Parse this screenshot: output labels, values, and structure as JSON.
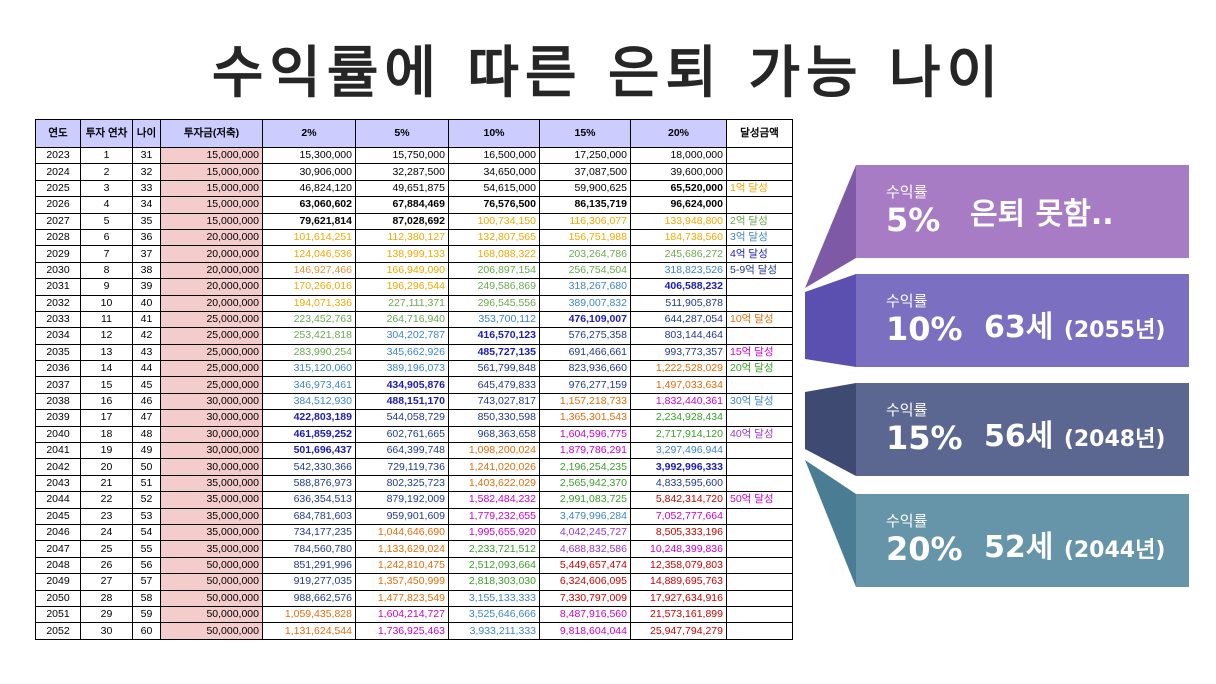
{
  "title": "수익률에 따른 은퇴 가능 나이",
  "table": {
    "headers": [
      "연도",
      "투자 연차",
      "나이",
      "투자금(저축)",
      "2%",
      "5%",
      "10%",
      "15%",
      "20%",
      "달성금액"
    ],
    "rows": [
      {
        "year": "2023",
        "n": "1",
        "age": "31",
        "inv": "15,000,000",
        "v2": "15,300,000",
        "v5": "15,750,000",
        "v10": "16,500,000",
        "v15": "17,250,000",
        "v20": "18,000,000",
        "ach": ""
      },
      {
        "year": "2024",
        "n": "2",
        "age": "32",
        "inv": "15,000,000",
        "v2": "30,906,000",
        "v5": "32,287,500",
        "v10": "34,650,000",
        "v15": "37,087,500",
        "v20": "39,600,000",
        "ach": ""
      },
      {
        "year": "2025",
        "n": "3",
        "age": "33",
        "inv": "15,000,000",
        "v2": "46,824,120",
        "v5": "49,651,875",
        "v10": "54,615,000",
        "v15": "59,900,625",
        "v20": "65,520,000",
        "ach": "1억 달성"
      },
      {
        "year": "2026",
        "n": "4",
        "age": "34",
        "inv": "15,000,000",
        "v2": "63,060,602",
        "v5": "67,884,469",
        "v10": "76,576,500",
        "v15": "86,135,719",
        "v20": "96,624,000",
        "ach": ""
      },
      {
        "year": "2027",
        "n": "5",
        "age": "35",
        "inv": "15,000,000",
        "v2": "79,621,814",
        "v5": "87,028,692",
        "v10": "100,734,150",
        "v15": "116,306,077",
        "v20": "133,948,800",
        "ach": "2억 달성"
      },
      {
        "year": "2028",
        "n": "6",
        "age": "36",
        "inv": "20,000,000",
        "v2": "101,614,251",
        "v5": "112,380,127",
        "v10": "132,807,565",
        "v15": "156,751,988",
        "v20": "184,738,560",
        "ach": "3억 달성"
      },
      {
        "year": "2029",
        "n": "7",
        "age": "37",
        "inv": "20,000,000",
        "v2": "124,046,536",
        "v5": "138,999,133",
        "v10": "168,088,322",
        "v15": "203,264,786",
        "v20": "245,686,272",
        "ach": "4억 달성"
      },
      {
        "year": "2030",
        "n": "8",
        "age": "38",
        "inv": "20,000,000",
        "v2": "146,927,466",
        "v5": "166,949,090",
        "v10": "206,897,154",
        "v15": "256,754,504",
        "v20": "318,823,526",
        "ach": "5-9억 달성"
      },
      {
        "year": "2031",
        "n": "9",
        "age": "39",
        "inv": "20,000,000",
        "v2": "170,266,016",
        "v5": "196,296,544",
        "v10": "249,586,869",
        "v15": "318,267,680",
        "v20": "406,588,232",
        "ach": ""
      },
      {
        "year": "2032",
        "n": "10",
        "age": "40",
        "inv": "20,000,000",
        "v2": "194,071,336",
        "v5": "227,111,371",
        "v10": "296,545,556",
        "v15": "389,007,832",
        "v20": "511,905,878",
        "ach": ""
      },
      {
        "year": "2033",
        "n": "11",
        "age": "41",
        "inv": "25,000,000",
        "v2": "223,452,763",
        "v5": "264,716,940",
        "v10": "353,700,112",
        "v15": "476,109,007",
        "v20": "644,287,054",
        "ach": "10억 달성"
      },
      {
        "year": "2034",
        "n": "12",
        "age": "42",
        "inv": "25,000,000",
        "v2": "253,421,818",
        "v5": "304,202,787",
        "v10": "416,570,123",
        "v15": "576,275,358",
        "v20": "803,144,464",
        "ach": ""
      },
      {
        "year": "2035",
        "n": "13",
        "age": "43",
        "inv": "25,000,000",
        "v2": "283,990,254",
        "v5": "345,662,926",
        "v10": "485,727,135",
        "v15": "691,466,661",
        "v20": "993,773,357",
        "ach": "15억 달성"
      },
      {
        "year": "2036",
        "n": "14",
        "age": "44",
        "inv": "25,000,000",
        "v2": "315,120,060",
        "v5": "389,196,073",
        "v10": "561,799,848",
        "v15": "823,936,660",
        "v20": "1,222,528,029",
        "ach": "20억 달성"
      },
      {
        "year": "2037",
        "n": "15",
        "age": "45",
        "inv": "25,000,000",
        "v2": "346,973,461",
        "v5": "434,905,876",
        "v10": "645,479,833",
        "v15": "976,277,159",
        "v20": "1,497,033,634",
        "ach": ""
      },
      {
        "year": "2038",
        "n": "16",
        "age": "46",
        "inv": "30,000,000",
        "v2": "384,512,930",
        "v5": "488,151,170",
        "v10": "743,027,817",
        "v15": "1,157,218,733",
        "v20": "1,832,440,361",
        "ach": "30억 달성"
      },
      {
        "year": "2039",
        "n": "17",
        "age": "47",
        "inv": "30,000,000",
        "v2": "422,803,189",
        "v5": "544,058,729",
        "v10": "850,330,598",
        "v15": "1,365,301,543",
        "v20": "2,234,928,434",
        "ach": ""
      },
      {
        "year": "2040",
        "n": "18",
        "age": "48",
        "inv": "30,000,000",
        "v2": "461,859,252",
        "v5": "602,761,665",
        "v10": "968,363,658",
        "v15": "1,604,596,775",
        "v20": "2,717,914,120",
        "ach": "40억 달성"
      },
      {
        "year": "2041",
        "n": "19",
        "age": "49",
        "inv": "30,000,000",
        "v2": "501,696,437",
        "v5": "664,399,748",
        "v10": "1,098,200,024",
        "v15": "1,879,786,291",
        "v20": "3,297,496,944",
        "ach": ""
      },
      {
        "year": "2042",
        "n": "20",
        "age": "50",
        "inv": "30,000,000",
        "v2": "542,330,366",
        "v5": "729,119,736",
        "v10": "1,241,020,026",
        "v15": "2,196,254,235",
        "v20": "3,992,996,333",
        "ach": ""
      },
      {
        "year": "2043",
        "n": "21",
        "age": "51",
        "inv": "35,000,000",
        "v2": "588,876,973",
        "v5": "802,325,723",
        "v10": "1,403,622,029",
        "v15": "2,565,942,370",
        "v20": "4,833,595,600",
        "ach": ""
      },
      {
        "year": "2044",
        "n": "22",
        "age": "52",
        "inv": "35,000,000",
        "v2": "636,354,513",
        "v5": "879,192,009",
        "v10": "1,582,484,232",
        "v15": "2,991,083,725",
        "v20": "5,842,314,720",
        "ach": "50억 달성"
      },
      {
        "year": "2045",
        "n": "23",
        "age": "53",
        "inv": "35,000,000",
        "v2": "684,781,603",
        "v5": "959,901,609",
        "v10": "1,779,232,655",
        "v15": "3,479,996,284",
        "v20": "7,052,777,664",
        "ach": ""
      },
      {
        "year": "2046",
        "n": "24",
        "age": "54",
        "inv": "35,000,000",
        "v2": "734,177,235",
        "v5": "1,044,646,690",
        "v10": "1,995,655,920",
        "v15": "4,042,245,727",
        "v20": "8,505,333,196",
        "ach": ""
      },
      {
        "year": "2047",
        "n": "25",
        "age": "55",
        "inv": "35,000,000",
        "v2": "784,560,780",
        "v5": "1,133,629,024",
        "v10": "2,233,721,512",
        "v15": "4,688,832,586",
        "v20": "10,248,399,836",
        "ach": ""
      },
      {
        "year": "2048",
        "n": "26",
        "age": "56",
        "inv": "50,000,000",
        "v2": "851,291,996",
        "v5": "1,242,810,475",
        "v10": "2,512,093,664",
        "v15": "5,449,657,474",
        "v20": "12,358,079,803",
        "ach": ""
      },
      {
        "year": "2049",
        "n": "27",
        "age": "57",
        "inv": "50,000,000",
        "v2": "919,277,035",
        "v5": "1,357,450,999",
        "v10": "2,818,303,030",
        "v15": "6,324,606,095",
        "v20": "14,889,695,763",
        "ach": ""
      },
      {
        "year": "2050",
        "n": "28",
        "age": "58",
        "inv": "50,000,000",
        "v2": "988,662,576",
        "v5": "1,477,823,549",
        "v10": "3,155,133,333",
        "v15": "7,330,797,009",
        "v20": "17,927,634,916",
        "ach": ""
      },
      {
        "year": "2051",
        "n": "29",
        "age": "59",
        "inv": "50,000,000",
        "v2": "1,059,435,828",
        "v5": "1,604,214,727",
        "v10": "3,525,646,666",
        "v15": "8,487,916,560",
        "v20": "21,573,161,899",
        "ach": ""
      },
      {
        "year": "2052",
        "n": "30",
        "age": "60",
        "inv": "50,000,000",
        "v2": "1,131,624,544",
        "v5": "1,736,925,463",
        "v10": "3,933,211,333",
        "v15": "9,818,604,044",
        "v20": "25,947,794,279",
        "ach": ""
      }
    ]
  },
  "panels": [
    {
      "label": "수익률",
      "rate": "5%",
      "result": "은퇴 못함..",
      "year": "",
      "color": "#a77cc4"
    },
    {
      "label": "수익률",
      "rate": "10%",
      "result": "63세",
      "year": "(2055년)",
      "color": "#7b6fc1"
    },
    {
      "label": "수익률",
      "rate": "15%",
      "result": "56세",
      "year": "(2048년)",
      "color": "#5b6791"
    },
    {
      "label": "수익률",
      "rate": "20%",
      "result": "52세",
      "year": "(2044년)",
      "color": "#6695aa"
    }
  ]
}
